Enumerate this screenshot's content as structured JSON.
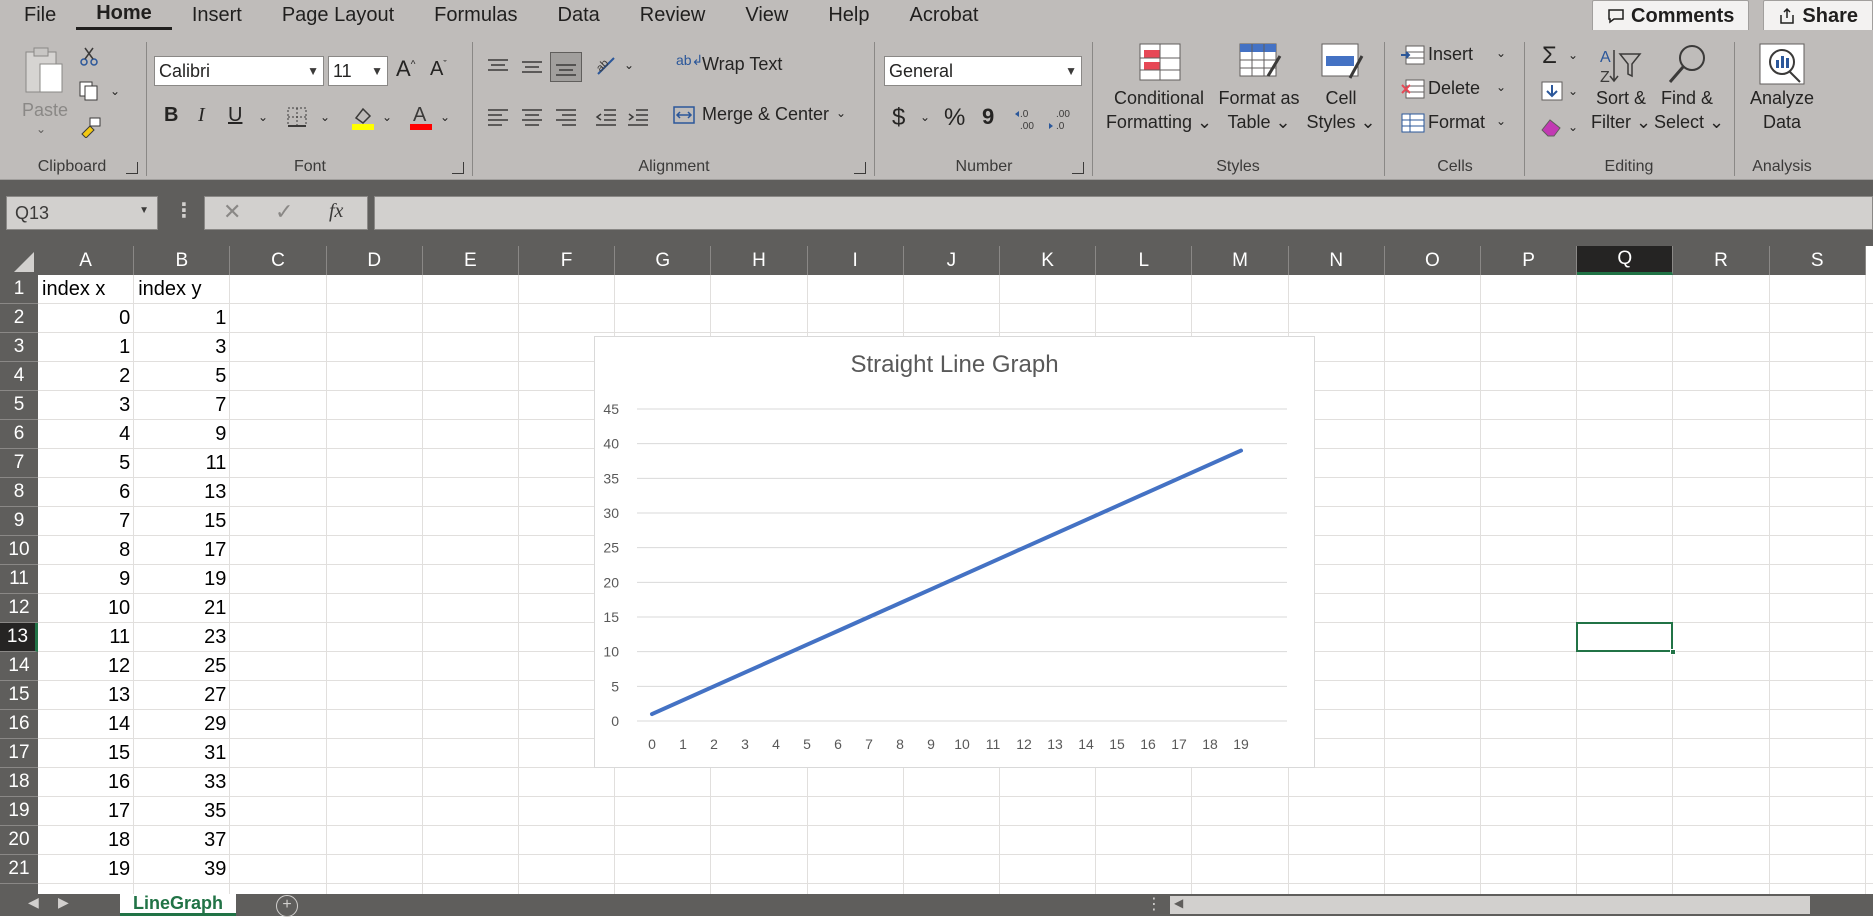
{
  "menu": {
    "tabs": [
      "File",
      "Home",
      "Insert",
      "Page Layout",
      "Formulas",
      "Data",
      "Review",
      "View",
      "Help",
      "Acrobat"
    ],
    "active": "Home",
    "comments_label": "Comments",
    "share_label": "Share"
  },
  "ribbon": {
    "clipboard": {
      "paste": "Paste",
      "label": "Clipboard"
    },
    "font": {
      "name": "Calibri",
      "size": "11",
      "label": "Font",
      "bold": "B",
      "italic": "I",
      "underline": "U"
    },
    "alignment": {
      "wrap_text": "Wrap Text",
      "merge_center": "Merge & Center",
      "label": "Alignment"
    },
    "number": {
      "format": "General",
      "currency": "$",
      "percent": "%",
      "comma": "9",
      "label": "Number"
    },
    "styles": {
      "conditional_1": "Conditional",
      "conditional_2": "Formatting",
      "format_table_1": "Format as",
      "format_table_2": "Table",
      "cell_styles_1": "Cell",
      "cell_styles_2": "Styles",
      "label": "Styles"
    },
    "cells": {
      "insert": "Insert",
      "delete": "Delete",
      "format": "Format",
      "label": "Cells"
    },
    "editing": {
      "sort_1": "Sort &",
      "sort_2": "Filter",
      "find_1": "Find &",
      "find_2": "Select",
      "label": "Editing"
    },
    "analysis": {
      "analyze_1": "Analyze",
      "analyze_2": "Data",
      "label": "Analysis"
    }
  },
  "formula_bar": {
    "name_box": "Q13",
    "fx": "fx",
    "content": ""
  },
  "columns": [
    "A",
    "B",
    "C",
    "D",
    "E",
    "F",
    "G",
    "H",
    "I",
    "J",
    "K",
    "L",
    "M",
    "N",
    "O",
    "P",
    "Q",
    "R",
    "S"
  ],
  "selected_column": "Q",
  "selected_row": "13",
  "rows": [
    "1",
    "2",
    "3",
    "4",
    "5",
    "6",
    "7",
    "8",
    "9",
    "10",
    "11",
    "12",
    "13",
    "14",
    "15",
    "16",
    "17",
    "18",
    "19",
    "20",
    "21"
  ],
  "sheet": {
    "header_a": "index x",
    "header_b": "index y",
    "x_values": [
      "0",
      "1",
      "2",
      "3",
      "4",
      "5",
      "6",
      "7",
      "8",
      "9",
      "10",
      "11",
      "12",
      "13",
      "14",
      "15",
      "16",
      "17",
      "18",
      "19"
    ],
    "y_values": [
      "1",
      "3",
      "5",
      "7",
      "9",
      "11",
      "13",
      "15",
      "17",
      "19",
      "21",
      "23",
      "25",
      "27",
      "29",
      "31",
      "33",
      "35",
      "37",
      "39"
    ]
  },
  "chart_data": {
    "type": "line",
    "title": "Straight Line Graph",
    "x": [
      0,
      1,
      2,
      3,
      4,
      5,
      6,
      7,
      8,
      9,
      10,
      11,
      12,
      13,
      14,
      15,
      16,
      17,
      18,
      19
    ],
    "series": [
      {
        "values": [
          1,
          3,
          5,
          7,
          9,
          11,
          13,
          15,
          17,
          19,
          21,
          23,
          25,
          27,
          29,
          31,
          33,
          35,
          37,
          39
        ]
      }
    ],
    "ylim": [
      0,
      45
    ],
    "yticks": [
      0,
      5,
      10,
      15,
      20,
      25,
      30,
      35,
      40,
      45
    ],
    "grid": true,
    "legend": "none",
    "line_color": "#4472c4"
  },
  "status": {
    "sheet_tab": "LineGraph"
  }
}
